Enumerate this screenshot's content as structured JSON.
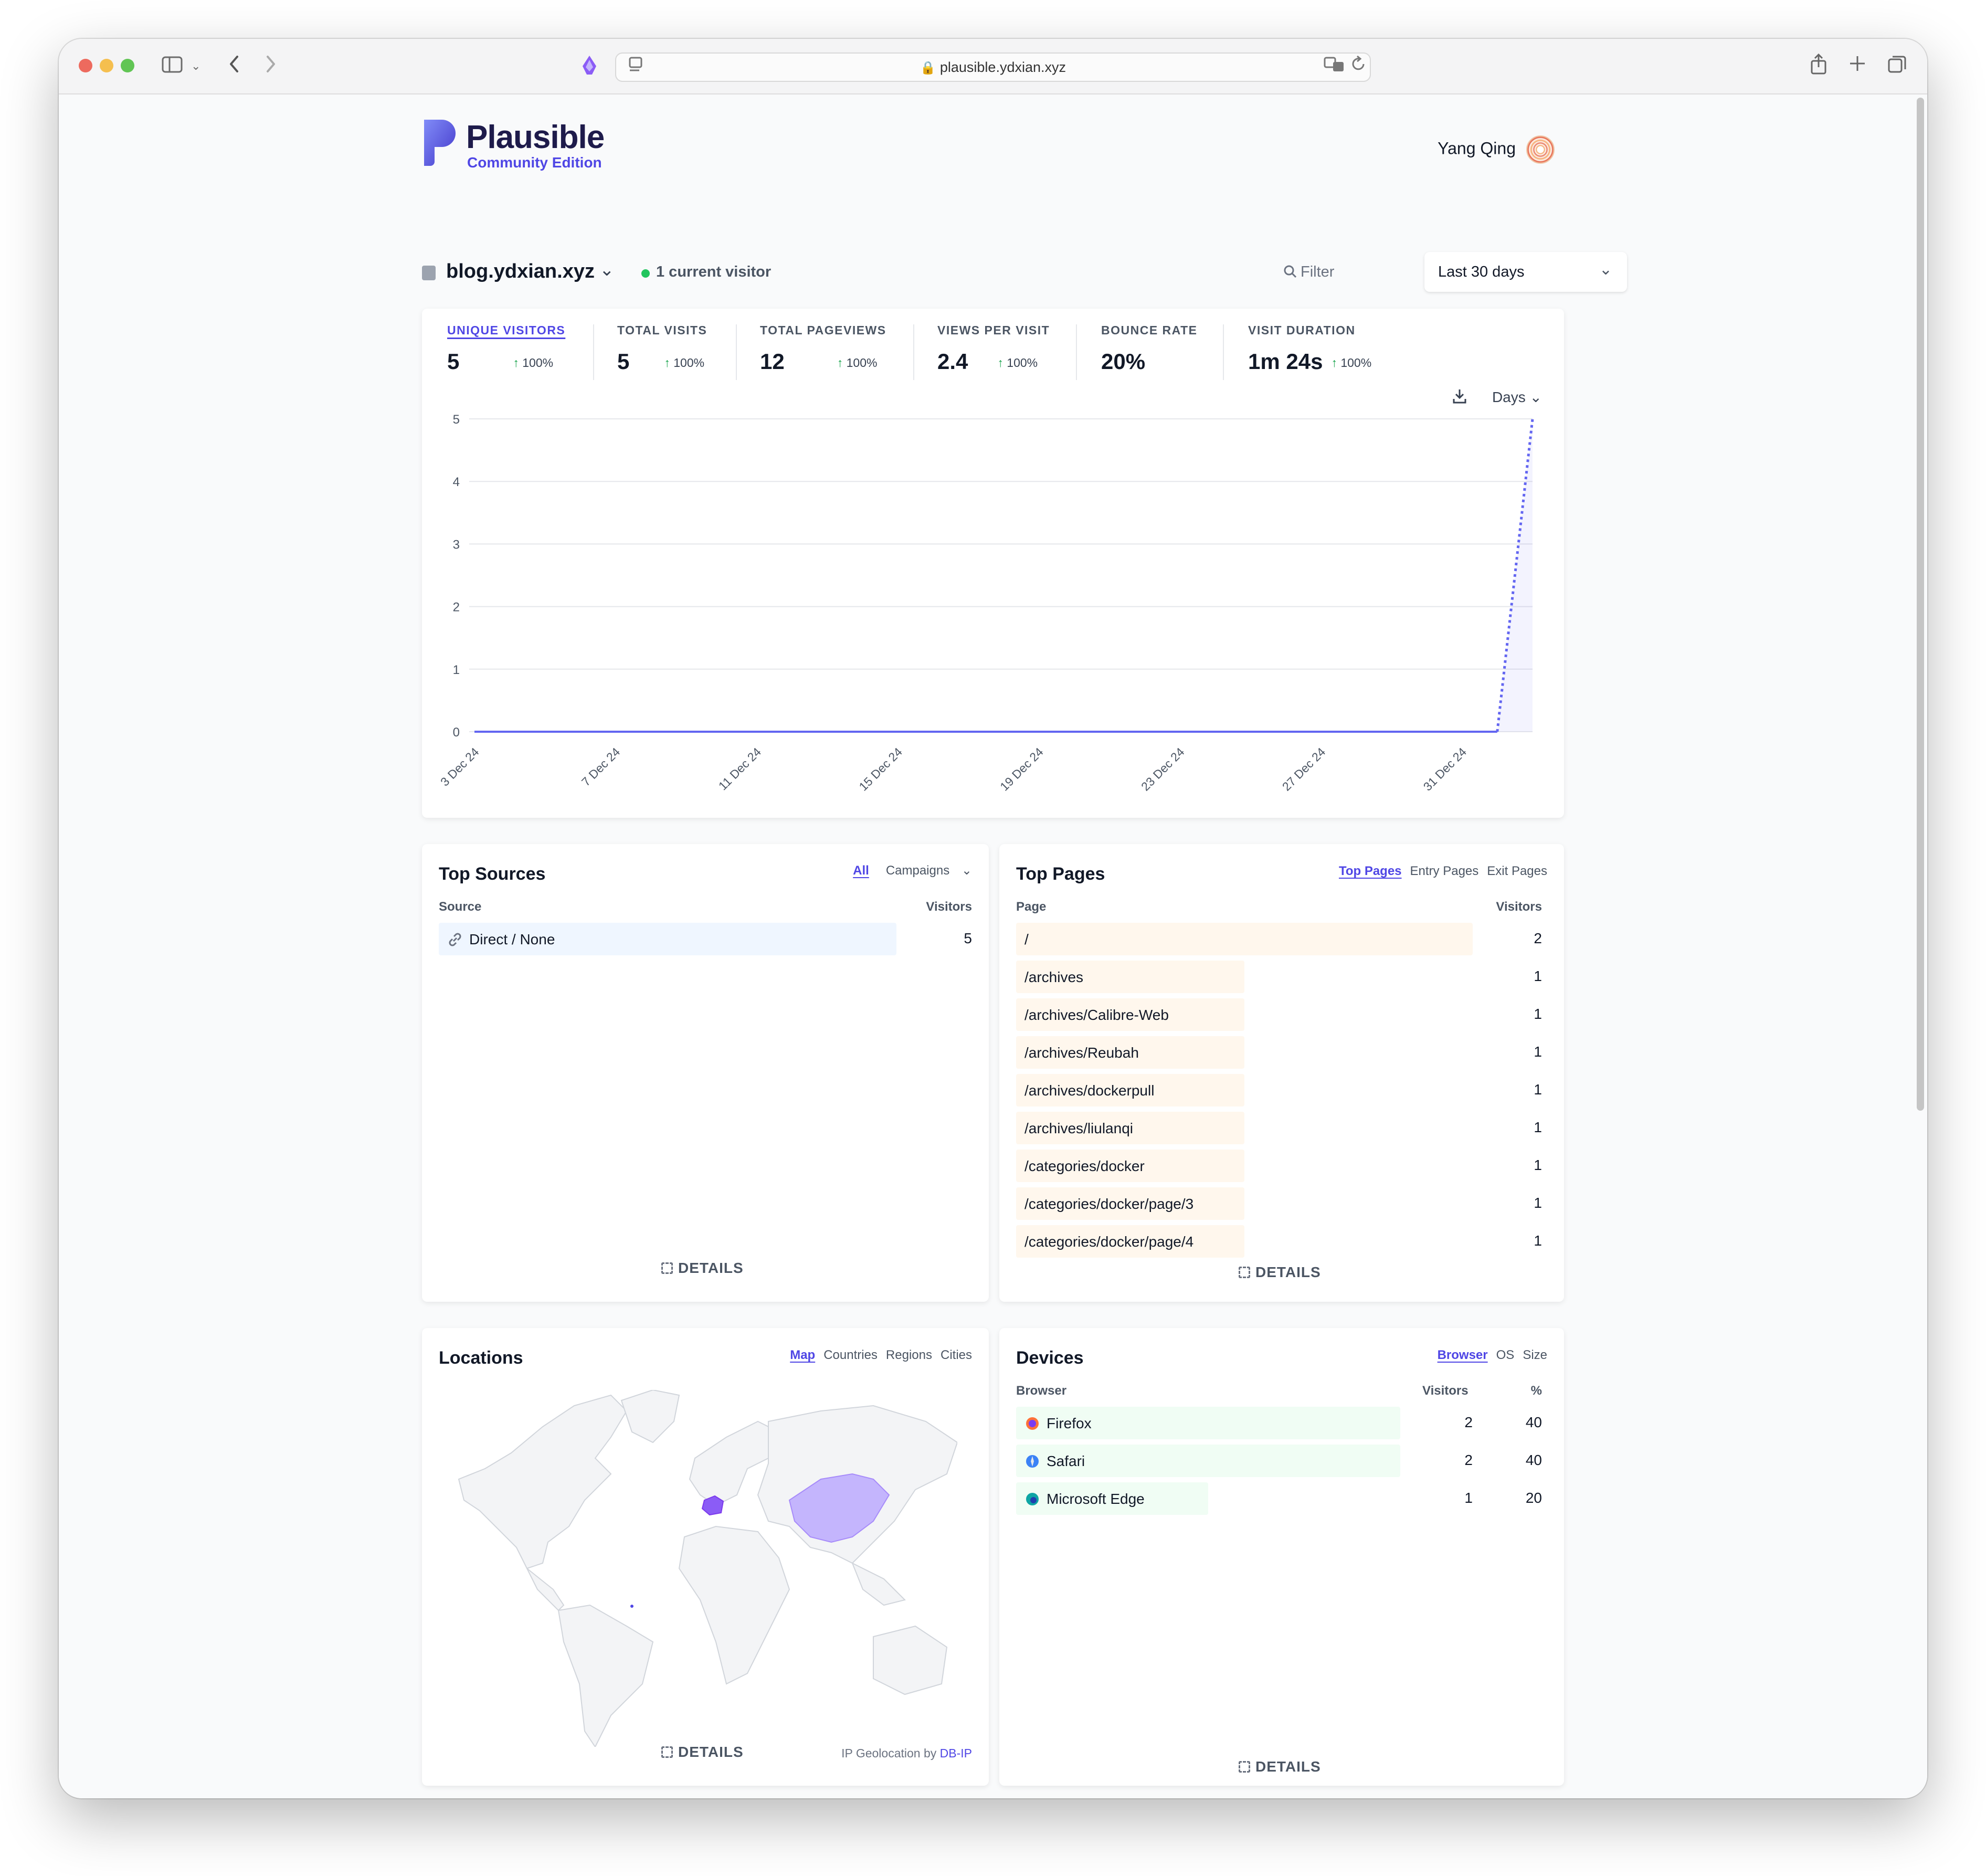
{
  "browser": {
    "url": "plausible.ydxian.xyz"
  },
  "header": {
    "logo_text": "Plausible",
    "logo_sub": "Community Edition",
    "user_name": "Yang Qing"
  },
  "site": {
    "domain": "blog.ydxian.xyz",
    "current_visitors": "1 current visitor",
    "filter_label": "Filter",
    "period_label": "Last 30 days"
  },
  "metrics": [
    {
      "label": "UNIQUE VISITORS",
      "value": "5",
      "change": "100%"
    },
    {
      "label": "TOTAL VISITS",
      "value": "5",
      "change": "100%"
    },
    {
      "label": "TOTAL PAGEVIEWS",
      "value": "12",
      "change": "100%"
    },
    {
      "label": "VIEWS PER VISIT",
      "value": "2.4",
      "change": "100%"
    },
    {
      "label": "BOUNCE RATE",
      "value": "20%",
      "change": ""
    },
    {
      "label": "VISIT DURATION",
      "value": "1m 24s",
      "change": "100%"
    }
  ],
  "chart_controls": {
    "interval_label": "Days"
  },
  "chart_data": {
    "type": "line",
    "x_tick_labels": [
      "3 Dec 24",
      "7 Dec 24",
      "11 Dec 24",
      "15 Dec 24",
      "19 Dec 24",
      "23 Dec 24",
      "27 Dec 24",
      "31 Dec 24"
    ],
    "y_ticks": [
      0,
      1,
      2,
      3,
      4,
      5
    ],
    "ylim": [
      0,
      5
    ],
    "x": [
      "3 Dec 24",
      "4 Dec 24",
      "5 Dec 24",
      "6 Dec 24",
      "7 Dec 24",
      "8 Dec 24",
      "9 Dec 24",
      "10 Dec 24",
      "11 Dec 24",
      "12 Dec 24",
      "13 Dec 24",
      "14 Dec 24",
      "15 Dec 24",
      "16 Dec 24",
      "17 Dec 24",
      "18 Dec 24",
      "19 Dec 24",
      "20 Dec 24",
      "21 Dec 24",
      "22 Dec 24",
      "23 Dec 24",
      "24 Dec 24",
      "25 Dec 24",
      "26 Dec 24",
      "27 Dec 24",
      "28 Dec 24",
      "29 Dec 24",
      "30 Dec 24",
      "31 Dec 24",
      "1 Jan 25",
      "2 Jan 25"
    ],
    "series": [
      {
        "values": [
          0,
          0,
          0,
          0,
          0,
          0,
          0,
          0,
          0,
          0,
          0,
          0,
          0,
          0,
          0,
          0,
          0,
          0,
          0,
          0,
          0,
          0,
          0,
          0,
          0,
          0,
          0,
          0,
          0,
          0,
          5
        ],
        "color": "#6366f1",
        "last_segment_dotted": true
      }
    ],
    "grid": true
  },
  "top_sources": {
    "title": "Top Sources",
    "tabs": [
      "All",
      "Campaigns"
    ],
    "col_source": "Source",
    "col_visitors": "Visitors",
    "rows": [
      {
        "label": "Direct / None",
        "value": "5",
        "share": 1.0
      }
    ],
    "details": "DETAILS"
  },
  "top_pages": {
    "title": "Top Pages",
    "tabs": [
      "Top Pages",
      "Entry Pages",
      "Exit Pages"
    ],
    "col_page": "Page",
    "col_visitors": "Visitors",
    "rows": [
      {
        "label": "/",
        "value": "2",
        "share": 1.0
      },
      {
        "label": "/archives",
        "value": "1",
        "share": 0.5
      },
      {
        "label": "/archives/Calibre-Web",
        "value": "1",
        "share": 0.5
      },
      {
        "label": "/archives/Reubah",
        "value": "1",
        "share": 0.5
      },
      {
        "label": "/archives/dockerpull",
        "value": "1",
        "share": 0.5
      },
      {
        "label": "/archives/liulanqi",
        "value": "1",
        "share": 0.5
      },
      {
        "label": "/categories/docker",
        "value": "1",
        "share": 0.5
      },
      {
        "label": "/categories/docker/page/3",
        "value": "1",
        "share": 0.5
      },
      {
        "label": "/categories/docker/page/4",
        "value": "1",
        "share": 0.5
      }
    ],
    "details": "DETAILS"
  },
  "locations": {
    "title": "Locations",
    "tabs": [
      "Map",
      "Countries",
      "Regions",
      "Cities"
    ],
    "highlight_color": "#c4b5fd",
    "details": "DETAILS",
    "credit_prefix": "IP Geolocation by",
    "credit_link": "DB-IP"
  },
  "devices": {
    "title": "Devices",
    "tabs": [
      "Browser",
      "OS",
      "Size"
    ],
    "col_browser": "Browser",
    "col_visitors": "Visitors",
    "col_pct": "%",
    "rows": [
      {
        "label": "Firefox",
        "visitors": "2",
        "pct": "40",
        "share": 1.0,
        "icon": "firefox-icon"
      },
      {
        "label": "Safari",
        "visitors": "2",
        "pct": "40",
        "share": 1.0,
        "icon": "safari-icon"
      },
      {
        "label": "Microsoft Edge",
        "visitors": "1",
        "pct": "20",
        "share": 0.5,
        "icon": "edge-icon"
      }
    ],
    "details": "DETAILS"
  }
}
